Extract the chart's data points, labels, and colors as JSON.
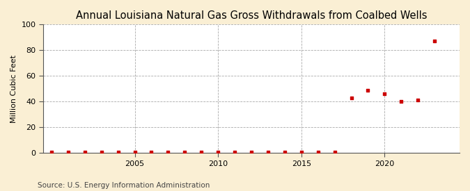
{
  "title": "Annual Louisiana Natural Gas Gross Withdrawals from Coalbed Wells",
  "ylabel": "Million Cubic Feet",
  "source": "Source: U.S. Energy Information Administration",
  "figure_bg_color": "#faefd4",
  "plot_bg_color": "#ffffff",
  "marker_color": "#cc0000",
  "years": [
    2000,
    2001,
    2002,
    2003,
    2004,
    2005,
    2006,
    2007,
    2008,
    2009,
    2010,
    2011,
    2012,
    2013,
    2014,
    2015,
    2016,
    2017,
    2018,
    2019,
    2020,
    2021,
    2022,
    2023
  ],
  "values": [
    0.5,
    0.5,
    0.5,
    0.5,
    0.5,
    0.5,
    0.5,
    0.5,
    0.5,
    0.5,
    0.5,
    0.5,
    0.5,
    0.5,
    0.5,
    0.5,
    0.5,
    0.5,
    43,
    49,
    46,
    40,
    41,
    87
  ],
  "xlim": [
    1999.5,
    2024.5
  ],
  "ylim": [
    0,
    100
  ],
  "yticks": [
    0,
    20,
    40,
    60,
    80,
    100
  ],
  "xticks": [
    2005,
    2010,
    2015,
    2020
  ],
  "grid_color": "#aaaaaa",
  "title_fontsize": 10.5,
  "label_fontsize": 8,
  "tick_fontsize": 8,
  "source_fontsize": 7.5
}
